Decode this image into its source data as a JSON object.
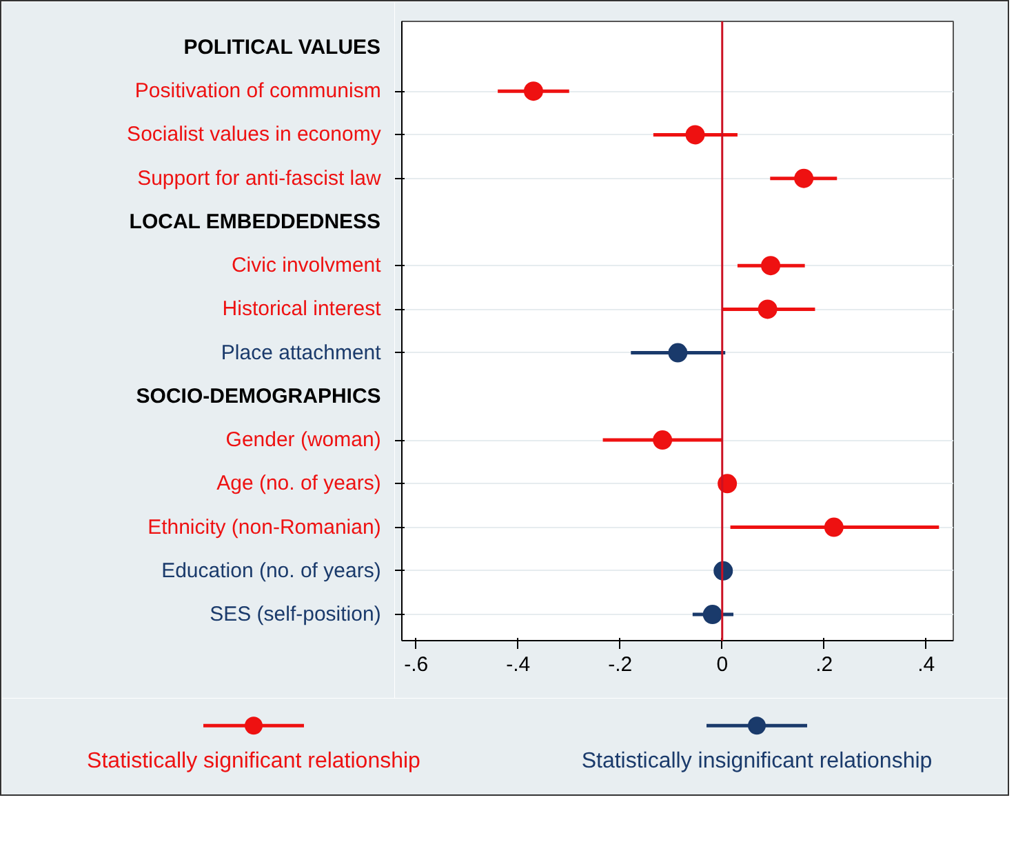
{
  "chart_data": {
    "type": "scatter",
    "orientation": "horizontal",
    "categories": [
      "POLITICAL VALUES",
      "Positivation of communism",
      "Socialist values in economy",
      "Support for anti-fascist law",
      "LOCAL EMBEDDEDNESS",
      "Civic involvment",
      "Historical interest",
      "Place attachment",
      "SOCIO-DEMOGRAPHICS",
      "Gender (woman)",
      "Age (no. of years)",
      "Ethnicity (non-Romanian)",
      "Education (no. of years)",
      "SES (self-position)"
    ],
    "series": [
      {
        "name": "Statistically significant relationship",
        "color": "#ee1111",
        "values": [
          null,
          -0.37,
          -0.053,
          0.16,
          null,
          0.095,
          0.089,
          null,
          null,
          -0.117,
          0.01,
          0.219,
          null,
          null
        ],
        "errors": [
          null,
          [
            -0.44,
            -0.3
          ],
          [
            -0.135,
            0.03
          ],
          [
            0.094,
            0.225
          ],
          null,
          [
            0.03,
            0.162
          ],
          [
            0.0,
            0.182
          ],
          null,
          null,
          [
            -0.234,
            0.0
          ],
          null,
          [
            0.016,
            0.425
          ],
          null,
          null
        ]
      },
      {
        "name": "Statistically insignificant relationship",
        "color": "#1a3a6b",
        "values": [
          null,
          null,
          null,
          null,
          null,
          null,
          null,
          -0.087,
          null,
          null,
          null,
          null,
          0.002,
          -0.019
        ],
        "errors": [
          null,
          null,
          null,
          null,
          null,
          null,
          null,
          [
            -0.179,
            0.006
          ],
          null,
          null,
          null,
          null,
          null,
          [
            -0.058,
            0.022
          ]
        ]
      }
    ],
    "xlim": [
      -0.628,
      0.453
    ],
    "xticks": [
      {
        "value": -0.6,
        "label": "-.6"
      },
      {
        "value": -0.4,
        "label": "-.4"
      },
      {
        "value": -0.2,
        "label": "-.2"
      },
      0,
      {
        "value": 0.2,
        "label": ".2"
      },
      {
        "value": 0.4,
        "label": ".4"
      }
    ],
    "ref_lines": [
      {
        "axis": "x",
        "value": 0,
        "color": "#cc1122"
      }
    ],
    "grid": "y",
    "marker": "circle",
    "legend": "bottom"
  }
}
